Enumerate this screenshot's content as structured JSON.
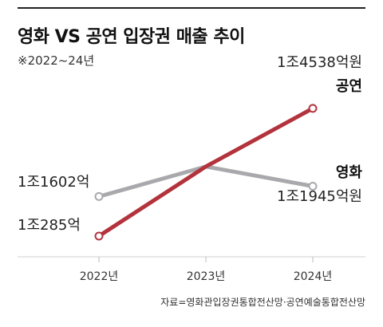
{
  "title": "영화 VS 공연 입장권 매출 추이",
  "subtitle": "※2022~24년",
  "source": "자료=영화관입장권통합전산망·공연예술통합전산망",
  "chart_data": {
    "type": "line",
    "title": "영화 VS 공연 입장권 매출 추이",
    "subtitle": "※2022~24년",
    "categories": [
      "2022년",
      "2023년",
      "2024년"
    ],
    "unit": "억원",
    "ylim": [
      8000,
      16500
    ],
    "grid": false,
    "legend": "none",
    "series": [
      {
        "name": "영화",
        "color": "#a9a9ad",
        "values": [
          11602,
          12600,
          11945
        ],
        "labels": [
          "1조1602억",
          "",
          "1조1945억원"
        ]
      },
      {
        "name": "공연",
        "color": "#b3333c",
        "values": [
          10285,
          12600,
          14538
        ],
        "labels": [
          "1조285억",
          "",
          "1조4538억원"
        ]
      }
    ]
  }
}
